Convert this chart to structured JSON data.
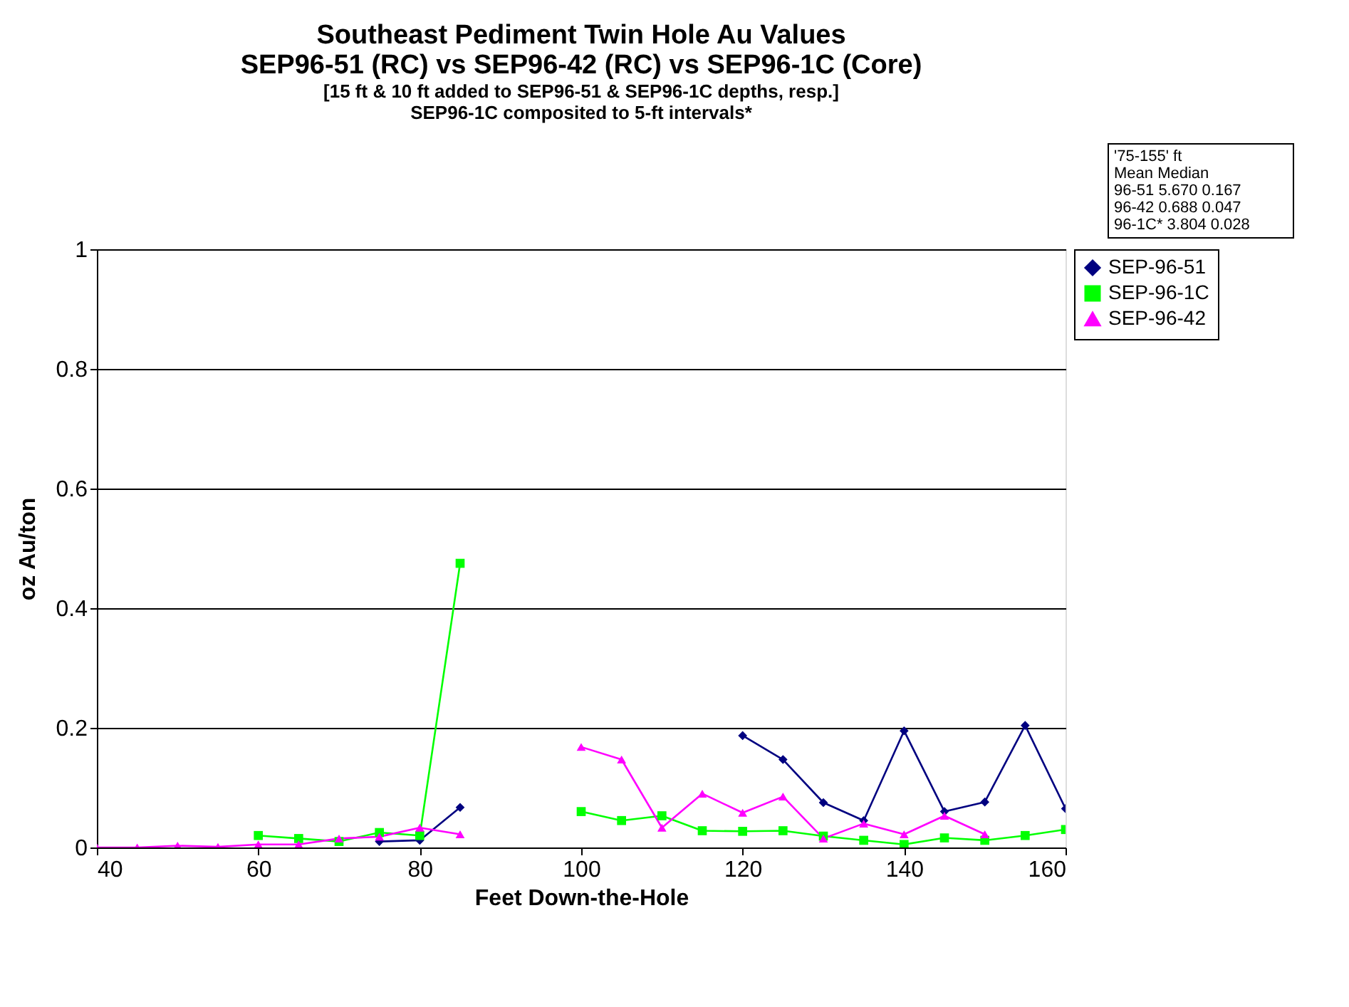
{
  "chart_data": {
    "type": "line",
    "title": "Southeast Pediment Twin Hole Au Values\nSEP96-51 (RC) vs SEP96-42 (RC) vs SEP96-1C (Core)",
    "subtitle": "[15 ft & 10 ft added to SEP96-51 & SEP96-1C depths, resp.]\nSEP96-1C composited to 5-ft intervals*",
    "xlabel": "Feet Down-the-Hole",
    "ylabel": "oz Au/ton",
    "x": [
      40,
      45,
      50,
      55,
      60,
      65,
      70,
      75,
      80,
      85,
      90,
      95,
      100,
      105,
      110,
      115,
      120,
      125,
      130,
      135,
      140,
      145,
      150,
      155,
      160
    ],
    "series": [
      {
        "name": "SEP-96-51",
        "color": "#000080",
        "marker": "diamond",
        "values": [
          null,
          null,
          null,
          null,
          null,
          null,
          null,
          0.01,
          0.012,
          0.067,
          null,
          null,
          null,
          null,
          null,
          null,
          0.187,
          0.147,
          0.075,
          0.045,
          0.195,
          0.06,
          0.076,
          0.204,
          0.065
        ]
      },
      {
        "name": "SEP-96-1C",
        "color": "#00ff00",
        "marker": "square",
        "values": [
          null,
          null,
          null,
          null,
          0.02,
          0.015,
          0.01,
          0.025,
          0.02,
          0.475,
          null,
          null,
          0.06,
          0.045,
          0.053,
          0.028,
          0.027,
          0.028,
          0.019,
          0.012,
          0.005,
          0.016,
          0.012,
          0.02,
          0.03
        ]
      },
      {
        "name": "SEP-96-42",
        "color": "#ff00ff",
        "marker": "triangle",
        "values": [
          0,
          0,
          0.003,
          0.001,
          0.005,
          0.005,
          0.015,
          0.018,
          0.033,
          0.022,
          null,
          null,
          0.168,
          0.147,
          0.033,
          0.09,
          0.058,
          0.085,
          0.015,
          0.04,
          0.022,
          0.053,
          0.022,
          null,
          null
        ]
      }
    ],
    "xlim": [
      40,
      160
    ],
    "xticks": [
      40,
      60,
      80,
      100,
      120,
      140,
      160
    ],
    "ylim": [
      0,
      1
    ],
    "yticks": [
      0,
      0.2,
      0.4,
      0.6,
      0.8,
      1
    ],
    "grid": "y",
    "legend": "right",
    "line_style": "solid",
    "annotations": [
      "'75-155' ft",
      "Mean  Median",
      "96-51   5.670   0.167",
      "96-42   0.688   0.047",
      "96-1C*  3.804   0.028"
    ]
  }
}
